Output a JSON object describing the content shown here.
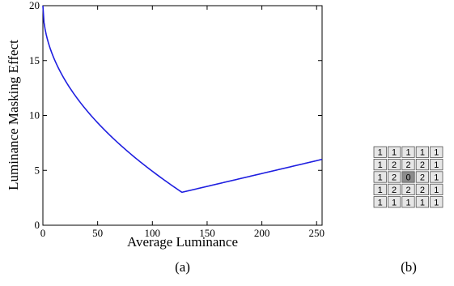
{
  "chart_data": [
    {
      "type": "line",
      "panel_label": "(a)",
      "xlabel": "Average Luminance",
      "ylabel": "Luminance Masking Effect",
      "xlim": [
        0,
        255
      ],
      "ylim": [
        0,
        20
      ],
      "xticks": [
        0,
        50,
        100,
        150,
        200,
        250
      ],
      "yticks": [
        0,
        5,
        10,
        15,
        20
      ],
      "grid": false,
      "line_color": "#1f1fe0",
      "series": [
        {
          "formula": "piecewise",
          "x": [
            0,
            5,
            10,
            20,
            30,
            40,
            50,
            60,
            70,
            80,
            90,
            100,
            110,
            120,
            127,
            150,
            200,
            255
          ],
          "y": [
            20,
            17.8,
            16.9,
            15.3,
            13.9,
            12.7,
            11.5,
            10.4,
            9.2,
            8.2,
            7.1,
            6.1,
            5.0,
            3.8,
            3.0,
            3.6,
            4.6,
            6.0
          ]
        }
      ]
    },
    {
      "type": "table",
      "panel_label": "(b)",
      "rows": [
        [
          "1",
          "1",
          "1",
          "1",
          "1"
        ],
        [
          "1",
          "2",
          "2",
          "2",
          "1"
        ],
        [
          "1",
          "2",
          "0",
          "2",
          "1"
        ],
        [
          "1",
          "2",
          "2",
          "2",
          "1"
        ],
        [
          "1",
          "1",
          "1",
          "1",
          "1"
        ]
      ],
      "colors": {
        "cell_fill": "#e6e6e6",
        "center_fill": "#8c8c8c",
        "border": "#555555"
      }
    }
  ]
}
